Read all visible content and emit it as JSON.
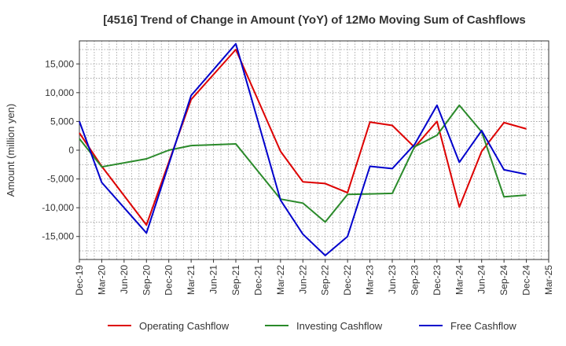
{
  "chart_data": {
    "type": "line",
    "title": "[4516]  Trend of Change in Amount (YoY) of 12Mo Moving Sum of Cashflows",
    "xlabel": "",
    "ylabel": "Amount (million yen)",
    "ylim": [
      -19000,
      19000
    ],
    "yticks": [
      15000,
      10000,
      5000,
      0,
      -5000,
      -10000,
      -15000
    ],
    "ytick_labels": [
      "15,000",
      "10,000",
      "5,000",
      "0",
      "-5,000",
      "-10,000",
      "-15,000"
    ],
    "x_tick_labels": [
      "Dec-19",
      "Mar-20",
      "Jun-20",
      "Sep-20",
      "Dec-20",
      "Mar-21",
      "Jun-21",
      "Sep-21",
      "Dec-21",
      "Mar-22",
      "Jun-22",
      "Sep-22",
      "Dec-22",
      "Mar-23",
      "Jun-23",
      "Sep-23",
      "Dec-23",
      "Mar-24",
      "Jun-24",
      "Sep-24",
      "Dec-24",
      "Mar-25"
    ],
    "grid": true,
    "legend_position": "bottom",
    "series": [
      {
        "name": "Operating Cashflow",
        "color": "#dd0000",
        "points": [
          [
            0,
            3000
          ],
          [
            1,
            -2800
          ],
          [
            3,
            -13000
          ],
          [
            5,
            8800
          ],
          [
            7,
            17500
          ],
          [
            9,
            -200
          ],
          [
            10,
            -5500
          ],
          [
            11,
            -5800
          ],
          [
            12,
            -7400
          ],
          [
            13,
            4900
          ],
          [
            14,
            4300
          ],
          [
            15,
            500
          ],
          [
            16,
            5000
          ],
          [
            17,
            -9900
          ],
          [
            18,
            -200
          ],
          [
            19,
            4800
          ],
          [
            20,
            3700
          ]
        ]
      },
      {
        "name": "Investing Cashflow",
        "color": "#2a8a2a",
        "points": [
          [
            0,
            2000
          ],
          [
            1,
            -2900
          ],
          [
            3,
            -1500
          ],
          [
            4,
            0
          ],
          [
            5,
            800
          ],
          [
            7,
            1100
          ],
          [
            9,
            -8500
          ],
          [
            10,
            -9200
          ],
          [
            11,
            -12500
          ],
          [
            12,
            -7700
          ],
          [
            13,
            -7600
          ],
          [
            14,
            -7500
          ],
          [
            15,
            600
          ],
          [
            16,
            2600
          ],
          [
            17,
            7800
          ],
          [
            18,
            3200
          ],
          [
            19,
            -8100
          ],
          [
            20,
            -7800
          ]
        ]
      },
      {
        "name": "Free Cashflow",
        "color": "#0000cc",
        "points": [
          [
            0,
            5000
          ],
          [
            1,
            -5600
          ],
          [
            3,
            -14400
          ],
          [
            5,
            9500
          ],
          [
            7,
            18500
          ],
          [
            9,
            -8700
          ],
          [
            10,
            -14600
          ],
          [
            11,
            -18300
          ],
          [
            12,
            -15000
          ],
          [
            13,
            -2800
          ],
          [
            14,
            -3200
          ],
          [
            15,
            1000
          ],
          [
            16,
            7800
          ],
          [
            17,
            -2100
          ],
          [
            18,
            3400
          ],
          [
            19,
            -3400
          ],
          [
            20,
            -4200
          ]
        ]
      }
    ]
  }
}
